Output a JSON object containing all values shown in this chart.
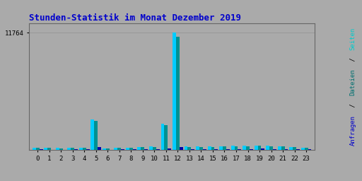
{
  "title": "Stunden-Statistik im Monat Dezember 2019",
  "title_color": "#0000cc",
  "title_fontsize": 9,
  "hours": [
    0,
    1,
    2,
    3,
    4,
    5,
    6,
    7,
    8,
    9,
    10,
    11,
    12,
    13,
    14,
    15,
    16,
    17,
    18,
    19,
    20,
    21,
    22,
    23
  ],
  "seiten": [
    280,
    240,
    220,
    250,
    260,
    3100,
    170,
    240,
    280,
    310,
    370,
    2650,
    11764,
    360,
    370,
    370,
    400,
    430,
    430,
    450,
    430,
    400,
    340,
    270
  ],
  "dateien": [
    260,
    225,
    205,
    235,
    245,
    2950,
    160,
    225,
    260,
    290,
    345,
    2500,
    11400,
    335,
    345,
    345,
    375,
    405,
    405,
    425,
    405,
    375,
    320,
    255
  ],
  "anfragen": [
    80,
    65,
    60,
    70,
    75,
    300,
    50,
    70,
    85,
    95,
    110,
    200,
    320,
    110,
    115,
    115,
    125,
    135,
    135,
    145,
    135,
    125,
    105,
    80
  ],
  "color_seiten": "#00ccff",
  "color_dateien": "#009090",
  "color_anfragen": "#0000aa",
  "ylim_max": 12700,
  "ytick_val": 11764,
  "ytick_label": "11764",
  "bg_color": "#aaaaaa",
  "grid_color": "#999999",
  "bar_width": 0.3,
  "ylabel_color_seiten": "#00cccc",
  "ylabel_color_dateien": "#007070",
  "ylabel_color_anfragen": "#0000cc"
}
